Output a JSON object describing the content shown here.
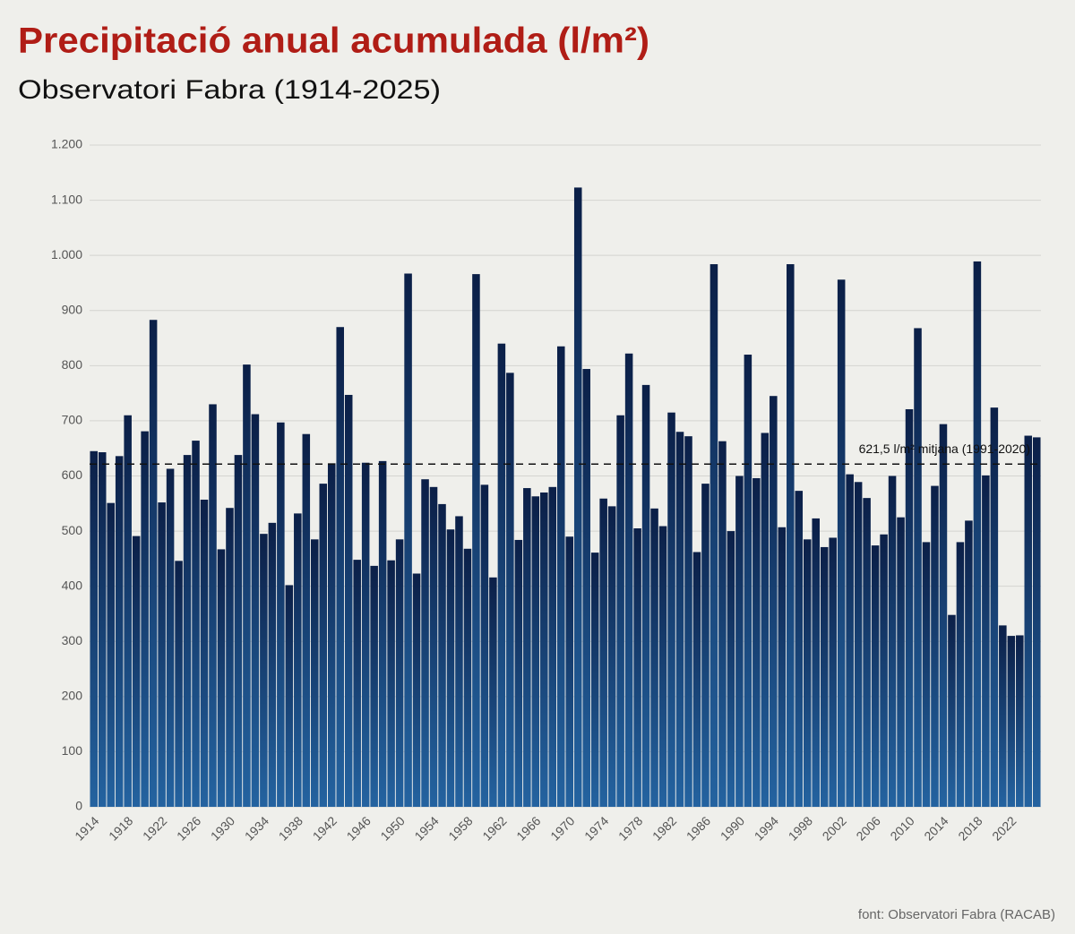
{
  "chart_data": {
    "type": "bar",
    "title": "Precipitació anual acumulada (l/m²)",
    "subtitle": "Observatori Fabra (1914-2025)",
    "source": "font: Observatori Fabra (RACAB)",
    "color": "#0b1f47",
    "grid": true,
    "ylim": [
      0,
      1200
    ],
    "yticks": [
      0,
      100,
      200,
      300,
      400,
      500,
      600,
      700,
      800,
      900,
      {
        "value": 1000,
        "label": "1.000"
      },
      {
        "value": 1100,
        "label": "1.100"
      },
      {
        "value": 1200,
        "label": "1.200"
      }
    ],
    "mean": {
      "value": 621.5,
      "label": "621,5 l/m² mitjana (1991-2020)"
    },
    "categories": [
      "1914",
      null,
      null,
      null,
      "1918",
      null,
      null,
      null,
      "1922",
      null,
      null,
      null,
      "1926",
      null,
      null,
      null,
      "1930",
      null,
      null,
      null,
      "1934",
      null,
      null,
      null,
      "1938",
      null,
      null,
      null,
      "1942",
      null,
      null,
      null,
      "1946",
      null,
      null,
      null,
      "1950",
      null,
      null,
      null,
      "1954",
      null,
      null,
      null,
      "1958",
      null,
      null,
      null,
      "1962",
      null,
      null,
      null,
      "1966",
      null,
      null,
      null,
      "1970",
      null,
      null,
      null,
      "1974",
      null,
      null,
      null,
      "1978",
      null,
      null,
      null,
      "1982",
      null,
      null,
      null,
      "1986",
      null,
      null,
      null,
      "1990",
      null,
      null,
      null,
      "1994",
      null,
      null,
      null,
      "1998",
      null,
      null,
      null,
      "2002",
      null,
      null,
      null,
      "2006",
      null,
      null,
      null,
      "2010",
      null,
      null,
      null,
      "2014",
      null,
      null,
      null,
      "2018",
      null,
      null,
      null,
      "2022",
      null,
      null,
      null
    ],
    "values": [
      645,
      643,
      551,
      636,
      710,
      491,
      681,
      883,
      552,
      613,
      446,
      638,
      664,
      557,
      730,
      467,
      542,
      638,
      802,
      712,
      495,
      515,
      697,
      402,
      532,
      676,
      485,
      586,
      623,
      870,
      747,
      448,
      624,
      437,
      627,
      447,
      485,
      967,
      423,
      594,
      580,
      549,
      503,
      527,
      468,
      966,
      584,
      416,
      840,
      787,
      484,
      578,
      563,
      570,
      580,
      835,
      490,
      1123,
      794,
      461,
      559,
      545,
      710,
      822,
      505,
      765,
      541,
      509,
      715,
      680,
      672,
      462,
      586,
      984,
      663,
      500,
      600,
      820,
      596,
      678,
      745,
      507,
      984,
      573,
      485,
      523,
      471,
      488,
      956,
      603,
      589,
      560,
      474,
      494,
      600,
      525,
      721,
      868,
      480,
      582,
      694,
      348,
      480,
      519,
      989,
      601,
      724,
      329,
      310,
      311,
      673,
      670
    ]
  }
}
